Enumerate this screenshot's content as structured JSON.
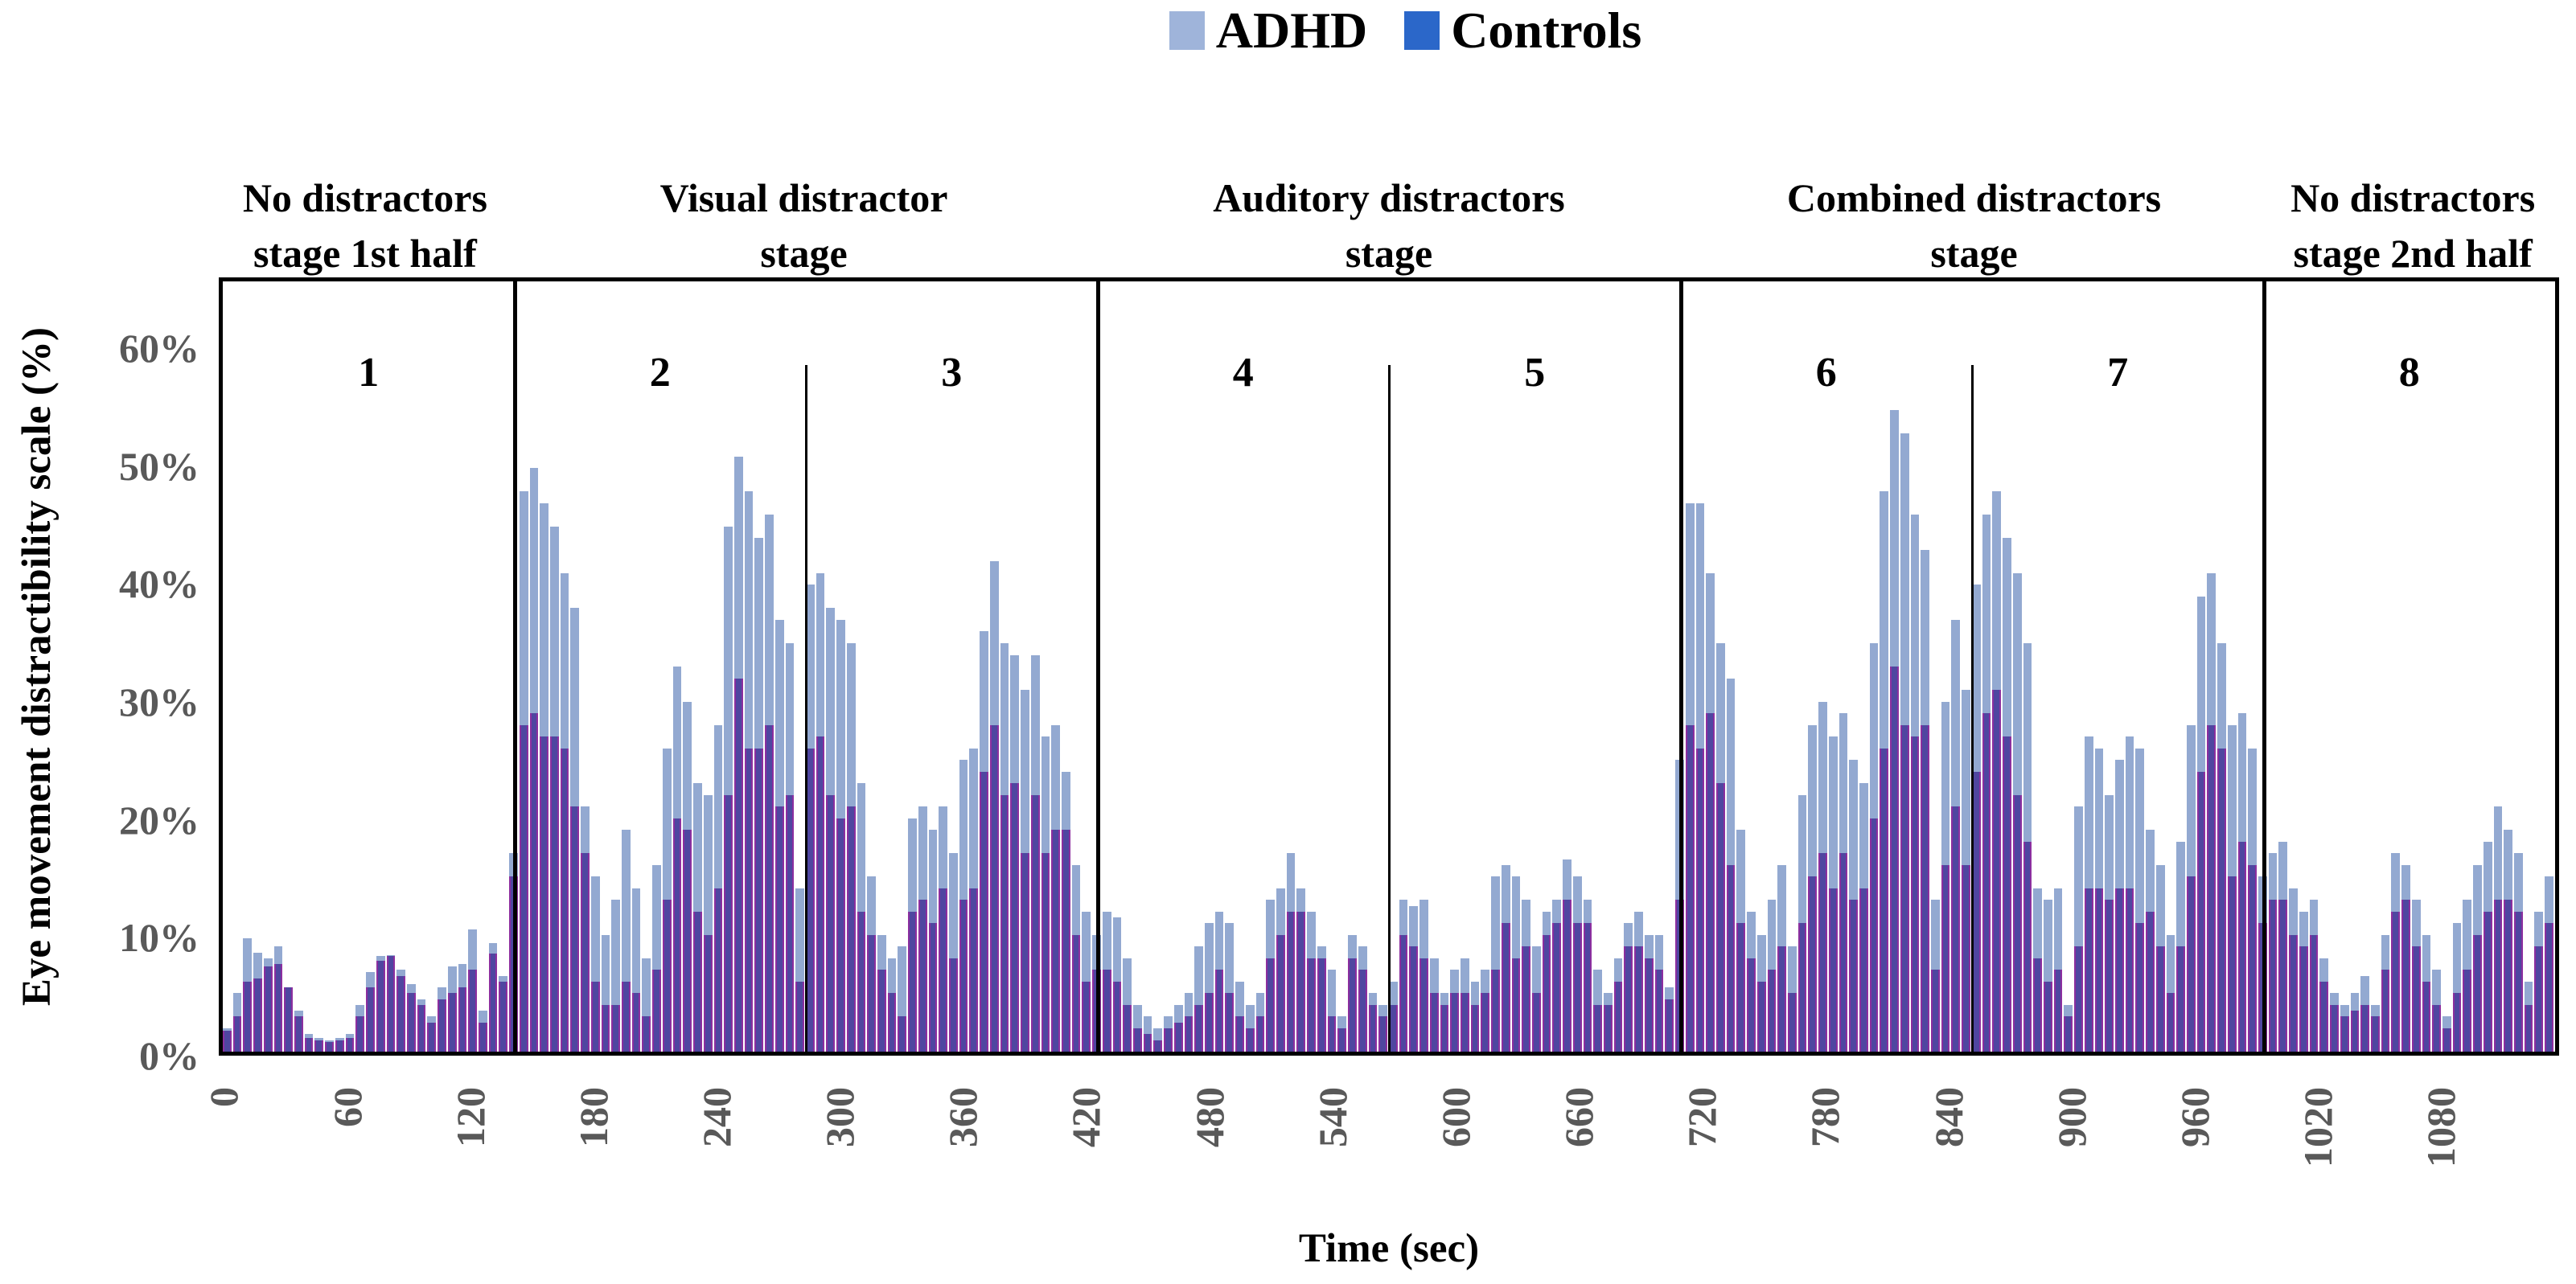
{
  "legend": {
    "adhd_label": "ADHD",
    "controls_label": "Controls"
  },
  "colors": {
    "adhd_bar": "#93A9D1",
    "adhd_legend_swatch": "#9FB4DA",
    "controls_bar_fill": "#4F46A0",
    "controls_bar_edge": "#8C2F9F",
    "controls_legend_swatch": "#2B67C9",
    "axis_tick_text": "#595959",
    "frame": "#000000"
  },
  "y_axis": {
    "title": "Eye movement distractibility scale (%)",
    "tick_labels": [
      "60%",
      "50%",
      "40%",
      "30%",
      "20%",
      "10%",
      "0%"
    ],
    "tick_values": [
      60,
      50,
      40,
      30,
      20,
      10,
      0
    ]
  },
  "x_axis": {
    "title": "Time (sec)",
    "tick_values": [
      0,
      60,
      120,
      180,
      240,
      300,
      360,
      420,
      480,
      540,
      600,
      660,
      720,
      780,
      840,
      900,
      960,
      1020,
      1080
    ]
  },
  "stage_headers": [
    {
      "line1": "No distractors",
      "line2": "stage 1st half",
      "t_center": 71.25
    },
    {
      "line1": "Visual distractor",
      "line2": "stage",
      "t_center": 285
    },
    {
      "line1": "Auditory distractors",
      "line2": "stage",
      "t_center": 570
    },
    {
      "line1": "Combined distractors",
      "line2": "stage",
      "t_center": 855
    },
    {
      "line1": "No distractors",
      "line2": "stage 2nd half",
      "t_center": 1068.75
    }
  ],
  "segment_numbers": [
    {
      "label": "1",
      "t_center": 71.25
    },
    {
      "label": "2",
      "t_center": 213.75
    },
    {
      "label": "3",
      "t_center": 356.25
    },
    {
      "label": "4",
      "t_center": 498.75
    },
    {
      "label": "5",
      "t_center": 641.25
    },
    {
      "label": "6",
      "t_center": 783.75
    },
    {
      "label": "7",
      "t_center": 926.25
    },
    {
      "label": "8",
      "t_center": 1068.75
    }
  ],
  "chart_data": {
    "type": "bar",
    "overlap": "overlaid",
    "bin_seconds": 5,
    "x_start": 0,
    "x_end": 1140,
    "ylim": [
      0,
      66
    ],
    "y_tick_values": [
      0,
      10,
      20,
      30,
      40,
      50,
      60
    ],
    "x_tick_values": [
      0,
      60,
      120,
      180,
      240,
      300,
      360,
      420,
      480,
      540,
      600,
      660,
      720,
      780,
      840,
      900,
      960,
      1020,
      1080
    ],
    "xlabel": "Time (sec)",
    "ylabel": "Eye movement distractibility scale (%)",
    "grid": false,
    "legend_position": "top-center",
    "stage_dividers_full": [
      142.5,
      427.5,
      712.5,
      997.5
    ],
    "stage_dividers_partial": [
      285,
      570,
      855
    ],
    "series": [
      {
        "name": "ADHD",
        "values": [
          2,
          5,
          9.7,
          8.5,
          8,
          9,
          5.5,
          3.5,
          1.5,
          1.2,
          1,
          1.2,
          1.5,
          4,
          6.8,
          8.2,
          8.3,
          7,
          5.8,
          4.5,
          3,
          5.5,
          7.3,
          7.5,
          10.5,
          3.5,
          9.3,
          6.5,
          17,
          48,
          50,
          47,
          45,
          41,
          38,
          21,
          15,
          10,
          13,
          19,
          14,
          8,
          16,
          26,
          33,
          30,
          23,
          22,
          28,
          45,
          51,
          48,
          44,
          46,
          37,
          35,
          14,
          40,
          41,
          38,
          37,
          35,
          23,
          15,
          10,
          8,
          9,
          20,
          21,
          19,
          21,
          17,
          25,
          26,
          36,
          42,
          35,
          34,
          31,
          34,
          27,
          28,
          24,
          16,
          12,
          10,
          12,
          11.5,
          8,
          4,
          3,
          2,
          3,
          4,
          5,
          9,
          11,
          12,
          11,
          6,
          4,
          5,
          13,
          14,
          17,
          14,
          12,
          9,
          7,
          3,
          10,
          9,
          5,
          4,
          6,
          13,
          12.5,
          13,
          8,
          5,
          7,
          8,
          6,
          7,
          15,
          16,
          15,
          13,
          9,
          12,
          13,
          16.5,
          15,
          13,
          7,
          5,
          8,
          11,
          12,
          10,
          10,
          5.5,
          25,
          47,
          47,
          41,
          35,
          32,
          19,
          12,
          10,
          13,
          16,
          9,
          22,
          28,
          30,
          27,
          29,
          25,
          23,
          35,
          48,
          55,
          53,
          46,
          43,
          13,
          30,
          37,
          31,
          40,
          46,
          48,
          44,
          41,
          35,
          14,
          13,
          14,
          4,
          21,
          27,
          26,
          22,
          25,
          27,
          26,
          19,
          16,
          10,
          18,
          28,
          39,
          41,
          35,
          28,
          29,
          26,
          15,
          17,
          18,
          14,
          12,
          13,
          8,
          5,
          4,
          5,
          6.5,
          4,
          10,
          17,
          16,
          13,
          10,
          7,
          3,
          11,
          13,
          16,
          18,
          21,
          19,
          17,
          6,
          12,
          15
        ]
      },
      {
        "name": "Controls",
        "values": [
          1.8,
          3,
          6,
          6.3,
          7.3,
          7.5,
          5.5,
          3,
          1.2,
          1,
          0.8,
          1,
          1.2,
          3,
          5.5,
          7.8,
          8.2,
          6.5,
          5,
          4,
          2.5,
          4.5,
          5,
          5.5,
          7,
          2.5,
          8.4,
          6,
          15,
          28,
          29,
          27,
          27,
          26,
          21,
          17,
          6,
          4,
          4,
          6,
          5,
          3,
          7,
          13,
          20,
          19,
          12,
          10,
          14,
          22,
          32,
          26,
          26,
          28,
          21,
          22,
          6,
          26,
          27,
          22,
          20,
          21,
          12,
          10,
          7,
          5,
          3,
          12,
          13,
          11,
          14,
          8,
          13,
          14,
          24,
          28,
          22,
          23,
          17,
          22,
          17,
          19,
          19,
          10,
          6,
          7,
          7,
          6,
          4,
          2,
          1.5,
          1,
          2,
          2.5,
          3,
          4,
          5,
          7,
          5,
          3,
          2,
          3,
          8,
          10,
          12,
          12,
          8,
          8,
          3,
          2,
          8,
          7,
          4,
          3,
          4,
          10,
          9,
          8,
          5,
          4,
          5,
          5,
          4,
          5,
          7,
          11,
          8,
          9,
          5,
          10,
          11,
          13,
          11,
          11,
          4,
          4,
          6,
          9,
          9,
          8,
          7,
          4.5,
          13,
          28,
          26,
          29,
          23,
          16,
          11,
          8,
          6,
          7,
          9,
          5,
          11,
          15,
          17,
          14,
          17,
          13,
          14,
          20,
          26,
          33,
          28,
          27,
          28,
          7,
          16,
          21,
          16,
          24,
          29,
          31,
          27,
          22,
          18,
          8,
          6,
          7,
          3,
          9,
          14,
          14,
          13,
          14,
          14,
          11,
          12,
          9,
          5,
          9,
          15,
          24,
          28,
          26,
          15,
          18,
          16,
          11,
          13,
          13,
          10,
          9,
          10,
          6,
          4,
          3,
          3.5,
          4,
          3,
          7,
          12,
          13,
          9,
          6,
          4,
          2,
          5,
          7,
          10,
          12,
          13,
          13,
          12,
          4,
          9,
          11
        ]
      }
    ]
  }
}
